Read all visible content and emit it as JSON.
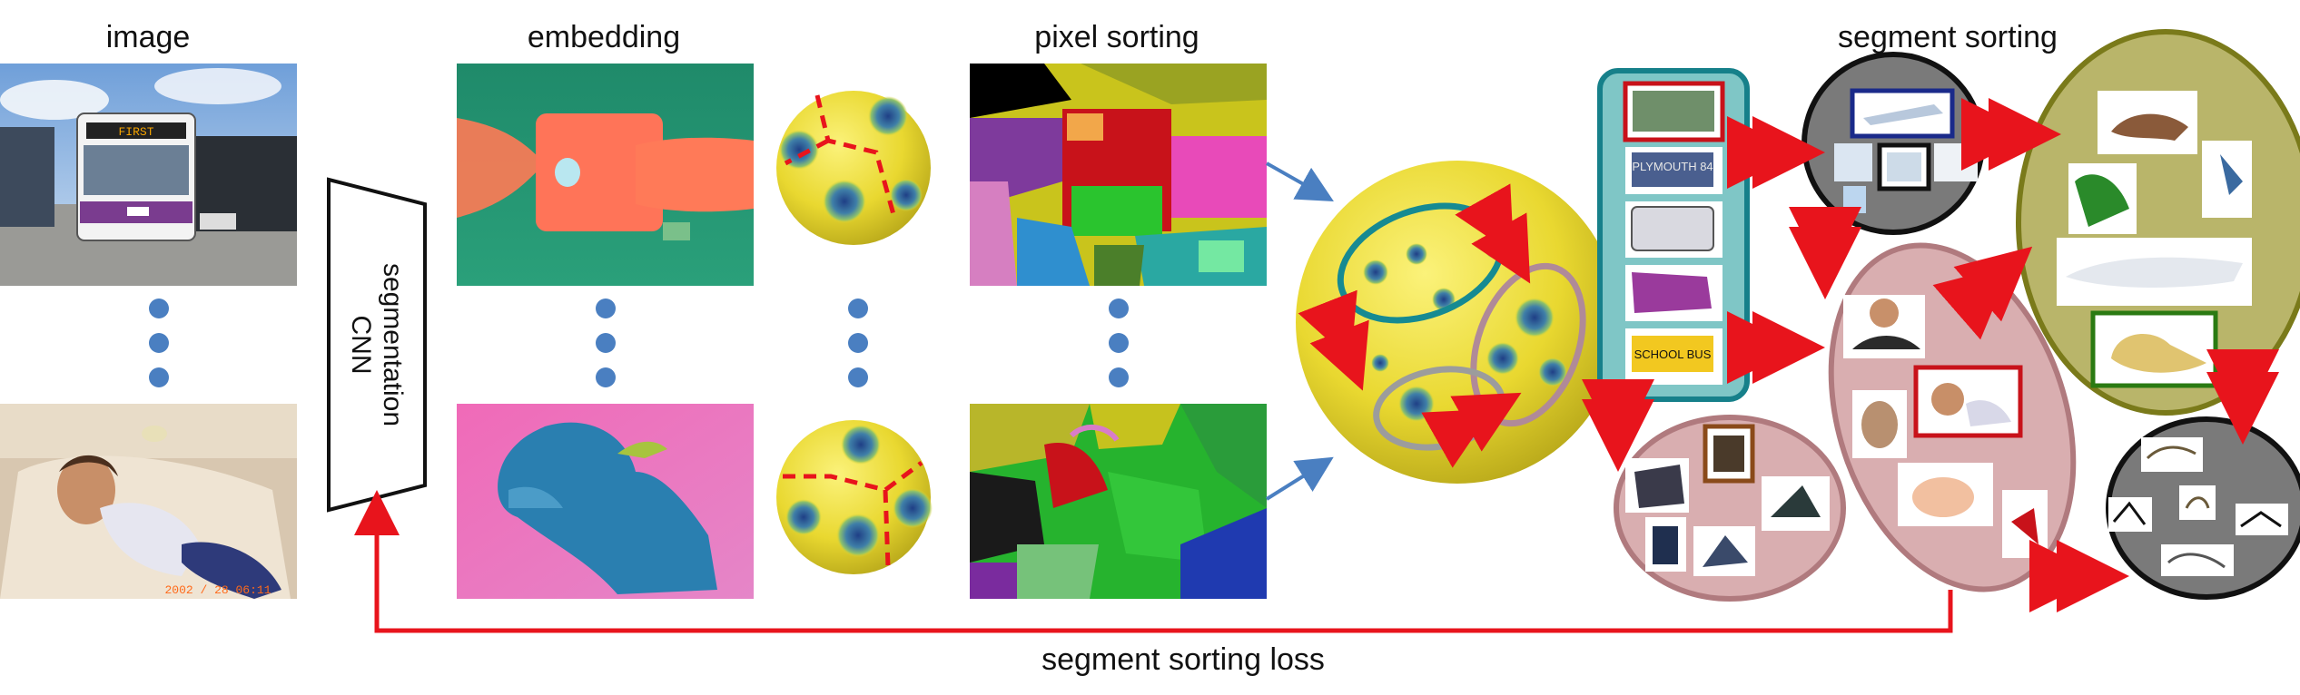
{
  "headings": {
    "image": "image",
    "embedding": "embedding",
    "pixel_sorting": "pixel sorting",
    "segment_sorting": "segment sorting"
  },
  "cnn_label_line1": "segmentation",
  "cnn_label_line2": "CNN",
  "loss_label": "segment sorting loss",
  "photo_text": {
    "bus_sign": "FIRST",
    "photo_timestamp": "2002 / 28 06:11",
    "bus_destination": "PLYMOUTH 84",
    "school_bus": "SCHOOL BUS"
  },
  "colors": {
    "arrow_red": "#e8141c",
    "arrow_blue": "#4a7fc1",
    "dot_blue": "#4a7fc1",
    "sphere_yellow": "#f2e23a",
    "sphere_blue": "#2a4a8c",
    "cluster_teal": "#7fc6c6",
    "cluster_pink": "#d9aeb0",
    "cluster_olive": "#b9b56a",
    "cluster_gray": "#7a7a7a"
  }
}
